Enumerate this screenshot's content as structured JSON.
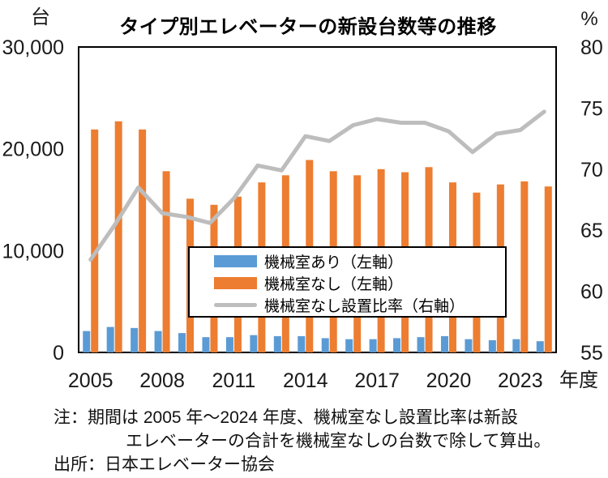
{
  "title": "タイプ別エレベーターの新設台数等の推移",
  "legend": [
    {
      "label": "機械室あり（左軸）",
      "color": "#5B9BD5",
      "type": "bar"
    },
    {
      "label": "機械室なし（左軸）",
      "color": "#ED7D31",
      "type": "bar"
    },
    {
      "label": "機械室なし設置比率（右軸）",
      "color": "#BDBDBD",
      "type": "line"
    }
  ],
  "notes": [
    "注：期間は 2005 年～2024 年度、機械室なし設置比率は新設",
    "エレベーターの合計を機械室なしの台数で除して算出。",
    "出所：日本エレベーター協会"
  ],
  "chart_data": {
    "type": "combo_bar_line",
    "title": "タイプ別エレベーターの新設台数等の推移",
    "x": [
      2005,
      2006,
      2007,
      2008,
      2009,
      2010,
      2011,
      2012,
      2013,
      2014,
      2015,
      2016,
      2017,
      2018,
      2019,
      2020,
      2021,
      2022,
      2023,
      2024
    ],
    "x_ticks": [
      "2005",
      "2008",
      "2011",
      "2014",
      "2017",
      "2020",
      "2023"
    ],
    "x_axis_suffix": "年度",
    "left_axis": {
      "unit": "台",
      "range": [
        0,
        30000
      ],
      "ticks": [
        {
          "label": "0",
          "value": 0
        },
        {
          "label": "10,000",
          "value": 10000
        },
        {
          "label": "20,000",
          "value": 20000
        },
        {
          "label": "30,000",
          "value": 30000
        }
      ]
    },
    "right_axis": {
      "unit": "%",
      "range": [
        55,
        80
      ],
      "ticks": [
        {
          "label": "55",
          "value": 55
        },
        {
          "label": "60",
          "value": 60
        },
        {
          "label": "65",
          "value": 65
        },
        {
          "label": "70",
          "value": 70
        },
        {
          "label": "75",
          "value": 75
        },
        {
          "label": "80",
          "value": 80
        }
      ]
    },
    "grid": false,
    "legend_position": "inside-lower-middle",
    "series": [
      {
        "name": "機械室あり（左軸）",
        "type": "bar",
        "axis": "left",
        "color": "#5B9BD5",
        "values": [
          2100,
          2500,
          2400,
          2100,
          1900,
          1500,
          1500,
          1700,
          1600,
          1600,
          1400,
          1300,
          1300,
          1400,
          1500,
          1600,
          1300,
          1200,
          1300,
          1100
        ]
      },
      {
        "name": "機械室なし（左軸）",
        "type": "bar",
        "axis": "left",
        "color": "#ED7D31",
        "values": [
          21900,
          22700,
          21900,
          17800,
          15100,
          14500,
          15300,
          16700,
          17400,
          18900,
          17800,
          17400,
          18000,
          17700,
          18200,
          16700,
          15700,
          16500,
          16800,
          16300
        ]
      },
      {
        "name": "機械室なし設置比率（右軸）",
        "type": "line",
        "axis": "right",
        "color": "#BDBDBD",
        "values": [
          62.6,
          65.4,
          68.5,
          66.4,
          66.1,
          65.6,
          67.6,
          70.3,
          69.9,
          72.7,
          72.3,
          73.6,
          74.1,
          73.8,
          73.8,
          73.1,
          71.4,
          72.9,
          73.2,
          74.7
        ]
      }
    ]
  }
}
